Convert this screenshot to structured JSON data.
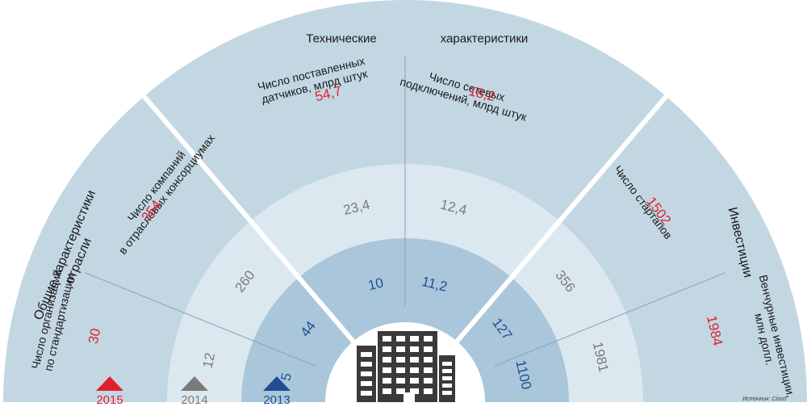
{
  "chart_data": {
    "type": "radial-segmented",
    "groups": [
      {
        "name": "Общие характеристики\nотрасли"
      },
      {
        "name": "Технические характеристики",
        "parts": [
          "Технические",
          "характеристики"
        ]
      },
      {
        "name": "Инвестиции"
      }
    ],
    "years": [
      "2015",
      "2014",
      "2013"
    ],
    "year_colors": {
      "2015": "#e0202e",
      "2014": "#7a7a7a",
      "2013": "#1f4e96"
    },
    "indicators": [
      {
        "key": "std",
        "label": "Число организаций\nпо стандартизации",
        "values": {
          "2015": "30",
          "2014": "12",
          "2013": "5"
        }
      },
      {
        "key": "consort",
        "label": "Число компаний\nв отраслевых консорциумах",
        "values": {
          "2015": "354",
          "2014": "260",
          "2013": "44"
        }
      },
      {
        "key": "sensors",
        "label": "Число поставленных\nдатчиков, млрд штук",
        "values": {
          "2015": "54,7",
          "2014": "23,4",
          "2013": "10"
        }
      },
      {
        "key": "network",
        "label": "Число сетевых\nподключений, млрд штук",
        "values": {
          "2015": "18,2",
          "2014": "12,4",
          "2013": "11,2"
        }
      },
      {
        "key": "startups",
        "label": "Число стартапов",
        "values": {
          "2015": "1502",
          "2014": "356",
          "2013": "127"
        }
      },
      {
        "key": "venture",
        "label": "Венчурные инвестиции,\nмлн долл.",
        "values": {
          "2015": "1984",
          "2014": "1981",
          "2013": "1100"
        }
      }
    ]
  },
  "source": "Источник: Cisco",
  "colors": {
    "outer": "#c3d7e3",
    "middle": "#dce8ef",
    "inner": "#a9c6da",
    "separator": "#ffffff",
    "building": "#3a3a3a"
  },
  "icons": {
    "center": "office-building-icon",
    "year_marker": "triangle-icon"
  }
}
